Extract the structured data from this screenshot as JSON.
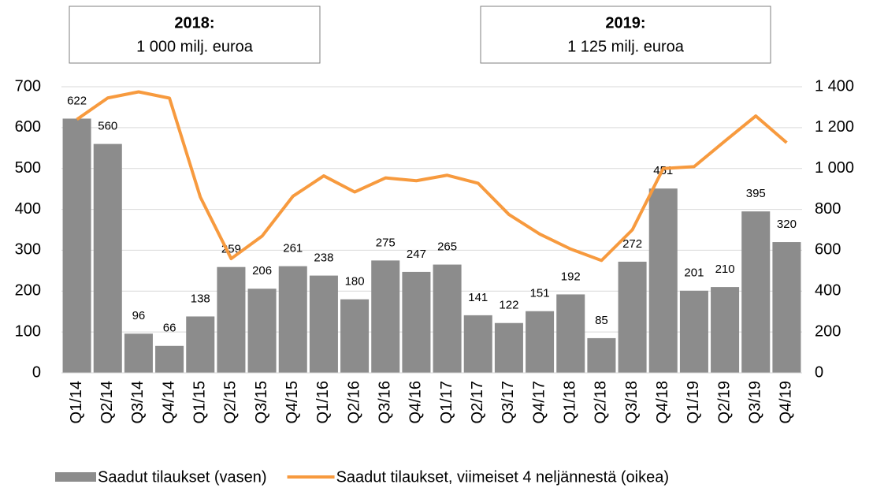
{
  "chart_data": {
    "type": "bar_line",
    "annotations": [
      {
        "title": "2018:",
        "text": "1 000 milj. euroa"
      },
      {
        "title": "2019:",
        "text": "1 125 milj. euroa"
      }
    ],
    "categories": [
      "Q1/14",
      "Q2/14",
      "Q3/14",
      "Q4/14",
      "Q1/15",
      "Q2/15",
      "Q3/15",
      "Q4/15",
      "Q1/16",
      "Q2/16",
      "Q3/16",
      "Q4/16",
      "Q1/17",
      "Q2/17",
      "Q3/17",
      "Q4/17",
      "Q1/18",
      "Q2/18",
      "Q3/18",
      "Q4/18",
      "Q1/19",
      "Q2/19",
      "Q3/19",
      "Q4/19"
    ],
    "series": [
      {
        "name": "Saadut tilaukset (vasen)",
        "type": "bar",
        "color": "#8c8c8c",
        "values": [
          622,
          560,
          96,
          66,
          138,
          259,
          206,
          261,
          238,
          180,
          275,
          247,
          265,
          141,
          122,
          151,
          192,
          85,
          272,
          451,
          201,
          210,
          395,
          320
        ]
      },
      {
        "name": "Saadut tilaukset, viimeiset 4 neljännestä (oikea)",
        "type": "line",
        "axis": "y2",
        "color": "#f79a3e",
        "values": [
          1240,
          1345,
          1375,
          1344,
          860,
          559,
          669,
          864,
          964,
          885,
          954,
          940,
          967,
          928,
          775,
          679,
          606,
          550,
          700,
          1000,
          1009,
          1134,
          1257,
          1126
        ]
      }
    ],
    "ylim": [
      0,
      700
    ],
    "yticks": [
      0,
      100,
      200,
      300,
      400,
      500,
      600,
      700
    ],
    "y2lim": [
      0,
      1400
    ],
    "y2ticks": [
      0,
      200,
      400,
      600,
      800,
      {
        "value": 1000,
        "label": "1 000"
      },
      {
        "value": 1200,
        "label": "1 200"
      },
      {
        "value": 1400,
        "label": "1 400"
      }
    ],
    "grid": true,
    "legend": "bottom"
  }
}
